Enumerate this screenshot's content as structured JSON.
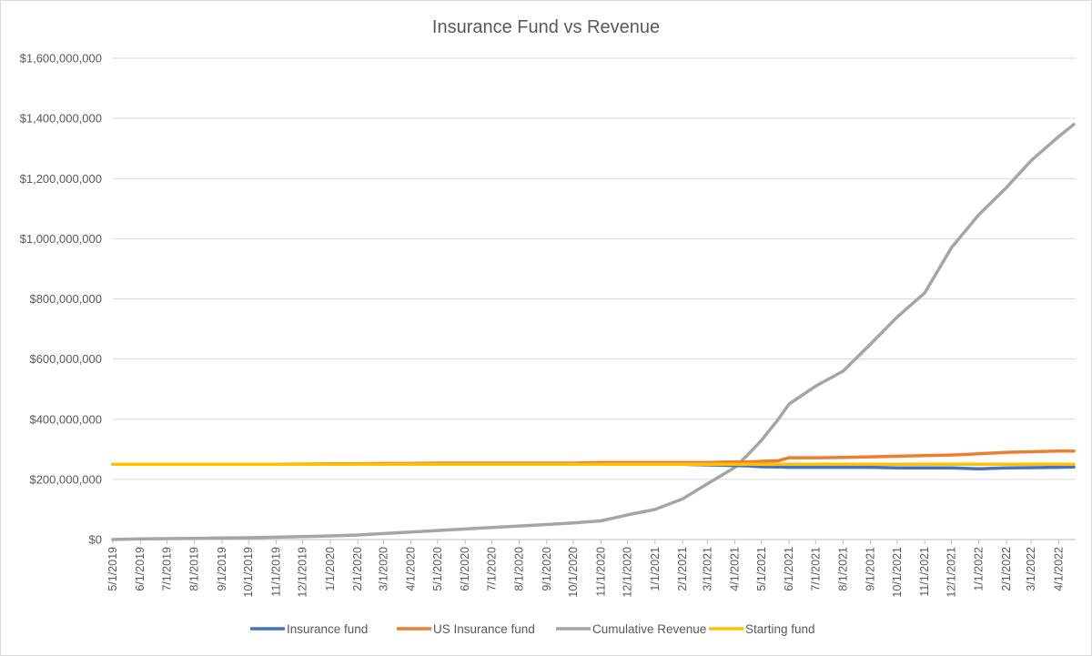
{
  "chart_data": {
    "type": "line",
    "title": "Insurance Fund vs Revenue",
    "xlabel": "",
    "ylabel": "",
    "ylim": [
      0,
      1600000000
    ],
    "y_ticks": [
      0,
      200000000,
      400000000,
      600000000,
      800000000,
      1000000000,
      1200000000,
      1400000000,
      1600000000
    ],
    "y_tick_labels": [
      "$0",
      "$200,000,000",
      "$400,000,000",
      "$600,000,000",
      "$800,000,000",
      "$1,000,000,000",
      "$1,200,000,000",
      "$1,400,000,000",
      "$1,600,000,000"
    ],
    "x_tick_labels": [
      "5/1/2019",
      "6/1/2019",
      "7/1/2019",
      "8/1/2019",
      "9/1/2019",
      "10/1/2019",
      "11/1/2019",
      "12/1/2019",
      "1/1/2020",
      "2/1/2020",
      "3/1/2020",
      "4/1/2020",
      "5/1/2020",
      "6/1/2020",
      "7/1/2020",
      "8/1/2020",
      "9/1/2020",
      "10/1/2020",
      "11/1/2020",
      "12/1/2020",
      "1/1/2021",
      "2/1/2021",
      "3/1/2021",
      "4/1/2021",
      "5/1/2021",
      "6/1/2021",
      "7/1/2021",
      "8/1/2021",
      "9/1/2021",
      "10/1/2021",
      "11/1/2021",
      "12/1/2021",
      "1/1/2022",
      "2/1/2022",
      "3/1/2022",
      "4/1/2022"
    ],
    "x": [
      "2019-05-01",
      "2019-06-01",
      "2019-07-01",
      "2019-08-01",
      "2019-09-01",
      "2019-10-01",
      "2019-11-01",
      "2019-12-01",
      "2020-01-01",
      "2020-02-01",
      "2020-03-01",
      "2020-04-01",
      "2020-05-01",
      "2020-06-01",
      "2020-07-01",
      "2020-08-01",
      "2020-09-01",
      "2020-10-01",
      "2020-11-01",
      "2020-12-01",
      "2021-01-01",
      "2021-02-01",
      "2021-03-01",
      "2021-03-15",
      "2021-04-01",
      "2021-04-15",
      "2021-05-01",
      "2021-05-20",
      "2021-06-01",
      "2021-07-01",
      "2021-08-01",
      "2021-09-01",
      "2021-10-01",
      "2021-11-01",
      "2021-12-01",
      "2022-01-01",
      "2022-02-01",
      "2022-03-01",
      "2022-04-01",
      "2022-04-18"
    ],
    "legend_position": "bottom",
    "grid": true,
    "series": [
      {
        "name": "Insurance fund",
        "color": "#4472c4",
        "values": [
          250000000,
          250000000,
          250000000,
          250000000,
          250000000,
          250000000,
          250000000,
          250000000,
          250000000,
          250000000,
          250000000,
          250000000,
          250000000,
          250000000,
          250000000,
          250000000,
          250000000,
          250000000,
          250000000,
          250000000,
          250000000,
          250000000,
          248000000,
          247000000,
          246000000,
          245000000,
          242000000,
          241000000,
          240000000,
          240000000,
          240000000,
          240000000,
          238000000,
          238000000,
          238000000,
          235000000,
          238000000,
          239000000,
          240000000,
          241000000
        ]
      },
      {
        "name": "US Insurance fund",
        "color": "#ed7d31",
        "values": [
          250000000,
          250000000,
          250000000,
          250000000,
          250000000,
          250000000,
          250000000,
          251000000,
          252000000,
          252000000,
          253000000,
          253000000,
          254000000,
          254000000,
          254000000,
          254000000,
          254000000,
          254000000,
          256000000,
          256000000,
          256000000,
          256000000,
          256000000,
          257000000,
          258000000,
          258000000,
          260000000,
          262000000,
          272000000,
          272000000,
          273000000,
          275000000,
          277000000,
          279000000,
          281000000,
          285000000,
          290000000,
          292000000,
          294000000,
          294000000
        ]
      },
      {
        "name": "Cumulative Revenue",
        "color": "#a5a5a5",
        "values": [
          0,
          2000000,
          3000000,
          4000000,
          5000000,
          6000000,
          8000000,
          10000000,
          12000000,
          15000000,
          20000000,
          25000000,
          30000000,
          35000000,
          40000000,
          45000000,
          50000000,
          55000000,
          62000000,
          82000000,
          100000000,
          135000000,
          185000000,
          210000000,
          240000000,
          280000000,
          330000000,
          400000000,
          450000000,
          510000000,
          560000000,
          650000000,
          740000000,
          820000000,
          970000000,
          1080000000,
          1170000000,
          1260000000,
          1340000000,
          1380000000
        ]
      },
      {
        "name": "Starting fund",
        "color": "#ffc000",
        "values": [
          250000000,
          250000000,
          250000000,
          250000000,
          250000000,
          250000000,
          250000000,
          250000000,
          250000000,
          250000000,
          250000000,
          250000000,
          250000000,
          250000000,
          250000000,
          250000000,
          250000000,
          250000000,
          250000000,
          250000000,
          250000000,
          250000000,
          250000000,
          250000000,
          250000000,
          250000000,
          250000000,
          250000000,
          250000000,
          250000000,
          250000000,
          250000000,
          250000000,
          250000000,
          250000000,
          250000000,
          250000000,
          250000000,
          250000000,
          250000000
        ]
      }
    ]
  }
}
